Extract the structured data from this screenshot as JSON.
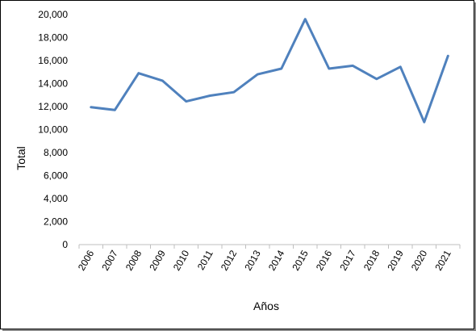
{
  "chart_data": {
    "type": "line",
    "xlabel": "Años",
    "ylabel": "Total",
    "ylim": [
      0,
      20000
    ],
    "yticks": [
      "0",
      "2,000",
      "4,000",
      "6,000",
      "8,000",
      "10,000",
      "12,000",
      "14,000",
      "16,000",
      "18,000",
      "20,000"
    ],
    "grid": false,
    "legend": "none",
    "line_color": "#4F81BD",
    "categories": [
      "2006",
      "2007",
      "2008",
      "2009",
      "2010",
      "2011",
      "2012",
      "2013",
      "2014",
      "2015",
      "2016",
      "2017",
      "2018",
      "2019",
      "2020",
      "2021"
    ],
    "series": [
      {
        "values": [
          11950,
          11700,
          14900,
          14250,
          12450,
          12950,
          13250,
          14800,
          15300,
          19600,
          15300,
          15550,
          14400,
          15450,
          10650,
          16400
        ]
      }
    ]
  }
}
